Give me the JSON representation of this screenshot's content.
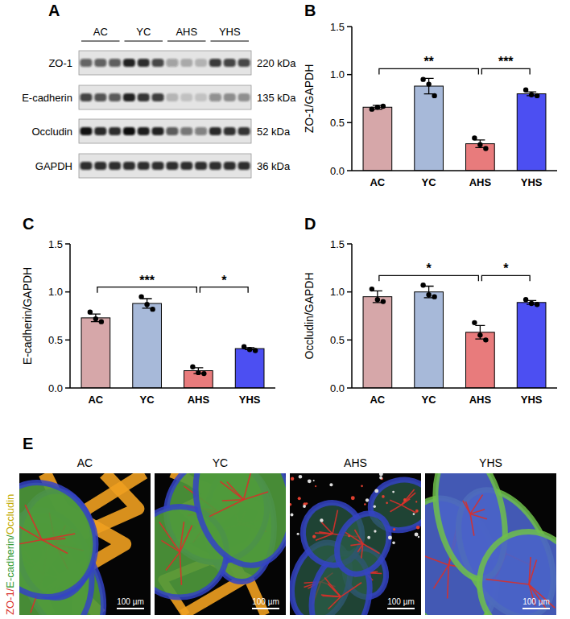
{
  "panel_labels": [
    "A",
    "B",
    "C",
    "D",
    "E"
  ],
  "blot": {
    "groups": [
      "AC",
      "YC",
      "AHS",
      "YHS"
    ],
    "rows": [
      {
        "name": "ZO-1",
        "size": "220 kDa"
      },
      {
        "name": "E-cadherin",
        "size": "135 kDa"
      },
      {
        "name": "Occludin",
        "size": "52 kDa"
      },
      {
        "name": "GAPDH",
        "size": "36 kDa"
      }
    ]
  },
  "chart_data": [
    {
      "type": "bar",
      "y_label": "ZO-1/GAPDH",
      "categories": [
        "AC",
        "YC",
        "AHS",
        "YHS"
      ],
      "values": [
        0.66,
        0.88,
        0.28,
        0.8
      ],
      "errors": [
        0.02,
        0.08,
        0.04,
        0.02
      ],
      "points": [
        [
          0.64,
          0.66,
          0.67
        ],
        [
          0.95,
          0.9,
          0.78
        ],
        [
          0.34,
          0.27,
          0.23
        ],
        [
          0.84,
          0.79,
          0.78
        ]
      ],
      "colors": [
        "#d6a7a9",
        "#a7b9d9",
        "#e87b7c",
        "#4c4ff2"
      ],
      "ylim": [
        0,
        1.5
      ],
      "yticks": [
        {
          "value": 0,
          "label": "0.0"
        },
        0.5,
        {
          "value": 1,
          "label": "1.0"
        },
        1.5
      ],
      "significance": [
        {
          "groups": [
            "AC",
            "AHS"
          ],
          "label": "**"
        },
        {
          "groups": [
            "AHS",
            "YHS"
          ],
          "label": "***"
        }
      ]
    },
    {
      "type": "bar",
      "y_label": "E-cadherin/GAPDH",
      "categories": [
        "AC",
        "YC",
        "AHS",
        "YHS"
      ],
      "values": [
        0.73,
        0.88,
        0.18,
        0.41
      ],
      "errors": [
        0.04,
        0.05,
        0.03,
        0.01
      ],
      "points": [
        [
          0.79,
          0.72,
          0.69
        ],
        [
          0.95,
          0.87,
          0.82
        ],
        [
          0.22,
          0.16,
          0.15
        ],
        [
          0.43,
          0.4,
          0.39
        ]
      ],
      "colors": [
        "#d6a7a9",
        "#a7b9d9",
        "#e87b7c",
        "#4c4ff2"
      ],
      "ylim": [
        0,
        1.5
      ],
      "yticks": [
        {
          "value": 0,
          "label": "0.0"
        },
        0.5,
        {
          "value": 1,
          "label": "1.0"
        },
        1.5
      ],
      "significance": [
        {
          "groups": [
            "AC",
            "AHS"
          ],
          "label": "***"
        },
        {
          "groups": [
            "AHS",
            "YHS"
          ],
          "label": "*"
        }
      ]
    },
    {
      "type": "bar",
      "y_label": "Occludin/GAPDH",
      "categories": [
        "AC",
        "YC",
        "AHS",
        "YHS"
      ],
      "values": [
        0.95,
        1.0,
        0.58,
        0.89
      ],
      "errors": [
        0.06,
        0.06,
        0.07,
        0.02
      ],
      "points": [
        [
          1.03,
          0.92,
          0.9
        ],
        [
          1.07,
          0.97,
          0.95
        ],
        [
          0.68,
          0.55,
          0.5
        ],
        [
          0.92,
          0.88,
          0.87
        ]
      ],
      "colors": [
        "#d6a7a9",
        "#a7b9d9",
        "#e87b7c",
        "#4c4ff2"
      ],
      "ylim": [
        0,
        1.5
      ],
      "yticks": [
        {
          "value": 0,
          "label": "0.0"
        },
        0.5,
        {
          "value": 1,
          "label": "1.0"
        },
        1.5
      ],
      "significance": [
        {
          "groups": [
            "AC",
            "AHS"
          ],
          "label": "*"
        },
        {
          "groups": [
            "AHS",
            "YHS"
          ],
          "label": "*"
        }
      ]
    }
  ],
  "images": {
    "panels": [
      "AC",
      "YC",
      "AHS",
      "YHS"
    ],
    "stain_labels": [
      {
        "text": "ZO-1/",
        "color": "#d8302a"
      },
      {
        "text": "E-cadherin/",
        "color": "#2f9a34"
      },
      {
        "text": "Occludin",
        "color": "#c2aa00"
      }
    ],
    "scale_bar": "100 µm"
  }
}
